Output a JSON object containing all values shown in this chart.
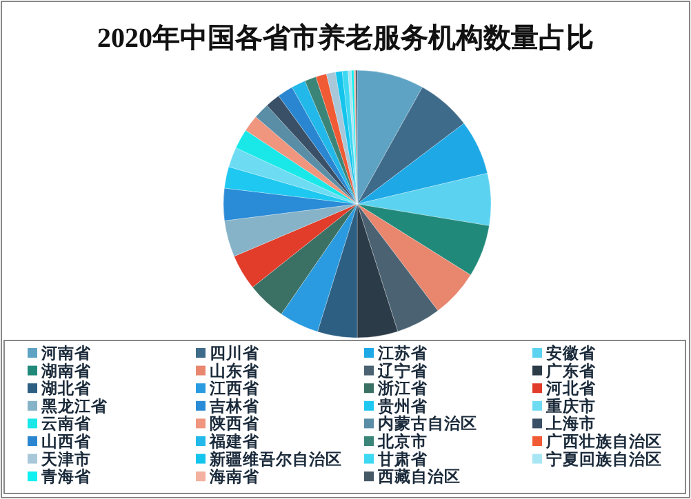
{
  "chart_data": {
    "type": "pie",
    "title": "2020年中国各省市养老服务机构数量占比",
    "categories": [
      "河南省",
      "四川省",
      "江苏省",
      "安徽省",
      "湖南省",
      "山东省",
      "辽宁省",
      "广东省",
      "湖北省",
      "江西省",
      "浙江省",
      "河北省",
      "黑龙江省",
      "吉林省",
      "贵州省",
      "重庆市",
      "云南省",
      "陕西省",
      "内蒙古自治区",
      "上海市",
      "山西省",
      "福建省",
      "北京市",
      "广西壮族自治区",
      "天津市",
      "新疆维吾尔自治区",
      "甘肃省",
      "宁夏回族自治区",
      "青海省",
      "海南省",
      "西藏自治区"
    ],
    "values": [
      8.1,
      6.6,
      6.6,
      6.3,
      6.3,
      5.8,
      5.4,
      4.9,
      4.8,
      4.8,
      4.7,
      4.3,
      4.4,
      3.9,
      2.6,
      2.4,
      2.4,
      2.0,
      1.9,
      1.8,
      1.9,
      1.7,
      1.4,
      1.3,
      1.1,
      0.8,
      0.7,
      0.4,
      0.3,
      0.2,
      0.2
    ],
    "colors": [
      "#5fa3c4",
      "#3f6b8a",
      "#1ea8e6",
      "#5bd3f0",
      "#20897a",
      "#e8866e",
      "#4a6272",
      "#2c3b48",
      "#2d5f83",
      "#2a9be0",
      "#3b7065",
      "#e23c2a",
      "#86b3c8",
      "#2a8bd6",
      "#1ec8f0",
      "#6ddcf2",
      "#1ae8e8",
      "#f0957e",
      "#5a8ea6",
      "#3a5066",
      "#2a86d0",
      "#22b8ea",
      "#3a8578",
      "#f05a35",
      "#a8c8da",
      "#14c4ec",
      "#3ed8f2",
      "#a8e6f4",
      "#10f0f0",
      "#f4b0a0",
      "#455865"
    ],
    "legend": "bottom"
  }
}
